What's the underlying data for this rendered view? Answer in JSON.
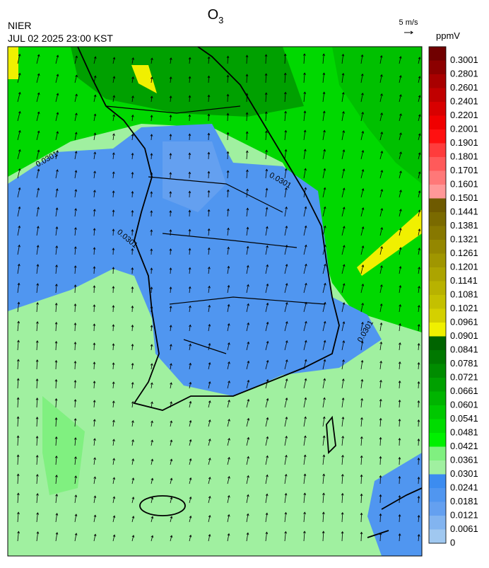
{
  "header": {
    "agency": "NIER",
    "datetime": "JUL 02 2025 23:00 KST",
    "title": {
      "base": "O",
      "sub": "3"
    }
  },
  "wind_reference": {
    "label": "5 m/s"
  },
  "colorbar": {
    "unit": "ppmV",
    "labels": [
      "0.3001",
      "0.2801",
      "0.2601",
      "0.2401",
      "0.2201",
      "0.2001",
      "0.1901",
      "0.1801",
      "0.1701",
      "0.1601",
      "0.1501",
      "0.1441",
      "0.1381",
      "0.1321",
      "0.1261",
      "0.1201",
      "0.1141",
      "0.1081",
      "0.1021",
      "0.0961",
      "0.0901",
      "0.0841",
      "0.0781",
      "0.0721",
      "0.0661",
      "0.0601",
      "0.0541",
      "0.0481",
      "0.0421",
      "0.0361",
      "0.0301",
      "0.0241",
      "0.0181",
      "0.0121",
      "0.0061",
      "0"
    ],
    "colors": [
      "#700000",
      "#8c0000",
      "#a80000",
      "#c00000",
      "#d80000",
      "#f00000",
      "#ff1010",
      "#ff3c3c",
      "#ff5a5a",
      "#ff7878",
      "#ff9898",
      "#6e5a00",
      "#7a6a00",
      "#877800",
      "#948700",
      "#a09600",
      "#aca400",
      "#b8b200",
      "#c4c000",
      "#d4d000",
      "#f0f000",
      "#006400",
      "#007800",
      "#008c00",
      "#00a000",
      "#00b400",
      "#00c800",
      "#00dc00",
      "#00f000",
      "#80f080",
      "#a0f0a0",
      "#3c8cf0",
      "#5096f0",
      "#64a0f0",
      "#82b4f0",
      "#a0c8f0"
    ]
  },
  "contour_labels": [
    "0.0301",
    "0.0301",
    "0.0301",
    "0.0301"
  ]
}
